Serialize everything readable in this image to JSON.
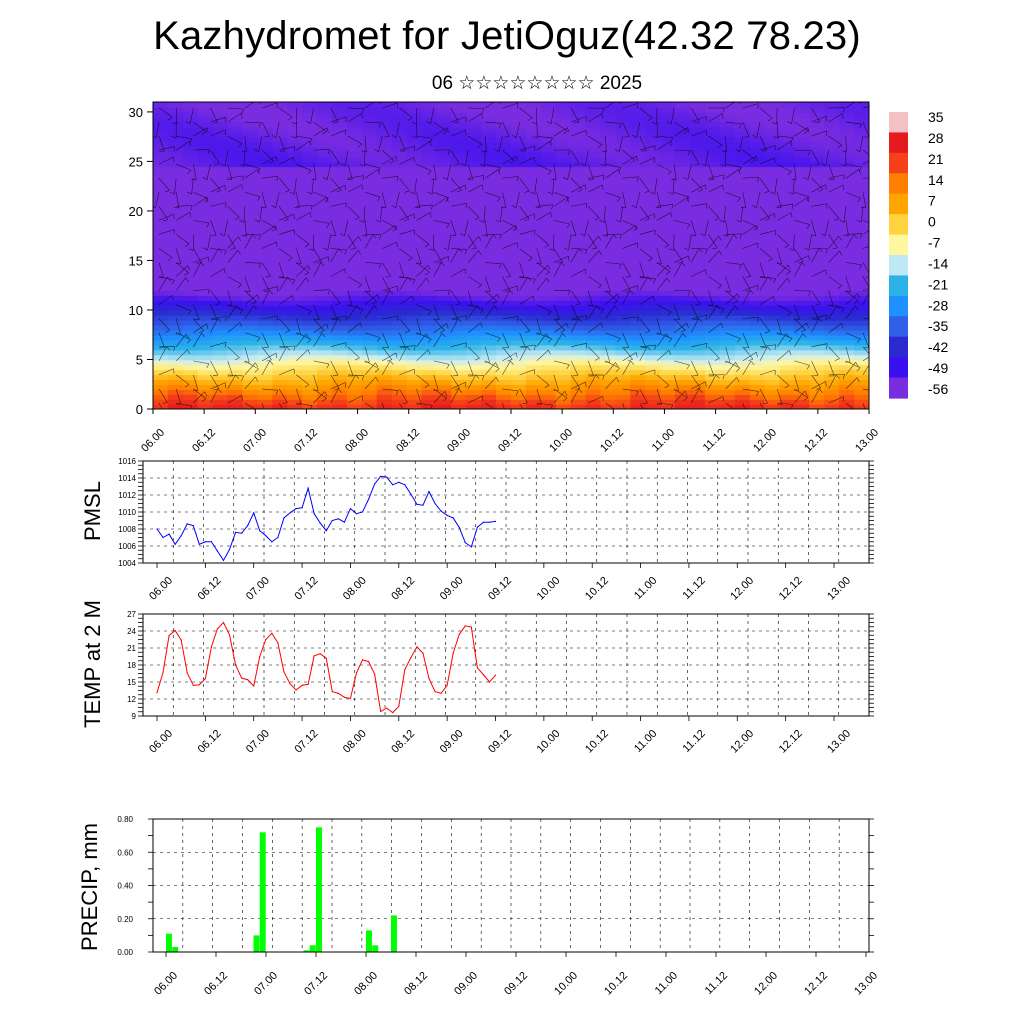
{
  "header": {
    "title": "Kazhydromet for JetiOguz(42.32 78.23)",
    "subtitle": "06 ☆☆☆☆☆☆☆☆ 2025"
  },
  "chart_data": [
    {
      "type": "heatmap",
      "id": "cross-section",
      "title": "",
      "ylabel": "",
      "ylim": [
        0,
        31
      ],
      "yticks": [
        0,
        5,
        10,
        15,
        20,
        25,
        30
      ],
      "xticks": [
        "06.00",
        "06.12",
        "07.00",
        "07.12",
        "08.00",
        "08.12",
        "09.00",
        "09.12",
        "10.00",
        "10.12",
        "11.00",
        "11.12",
        "12.00",
        "12.12",
        "13.00"
      ],
      "colorbar": {
        "labels": [
          "35",
          "28",
          "21",
          "14",
          "7",
          "0",
          "-7",
          "-14",
          "-21",
          "-28",
          "-35",
          "-42",
          "-49",
          "-56"
        ],
        "colors": [
          "#f4c2c4",
          "#e41a1c",
          "#f5401a",
          "#ff7f00",
          "#ffa500",
          "#ffd23f",
          "#fff7a0",
          "#bfe8f5",
          "#2bb3e8",
          "#1e90ff",
          "#3060e8",
          "#2a2ad0",
          "#3b10f0",
          "#7a2ce0"
        ]
      },
      "lapse_c_per_km": 7.4,
      "near_surface_offset": 27,
      "grid": true
    },
    {
      "type": "line",
      "id": "pmsl",
      "ylabel": "PMSL",
      "ylim": [
        1004,
        1016
      ],
      "yticks": [
        1004,
        1006,
        1008,
        1010,
        1012,
        1014,
        1016
      ],
      "xticks": [
        "06.00",
        "06.12",
        "07.00",
        "07.12",
        "08.00",
        "08.12",
        "09.00",
        "09.12",
        "10.00",
        "10.12",
        "11.00",
        "11.12",
        "12.00",
        "12.12",
        "13.00"
      ],
      "series": [
        {
          "color": "#0000ff",
          "x": [
            0.0,
            0.125,
            0.25,
            0.375,
            0.5,
            0.625,
            0.75,
            0.875,
            1.0,
            1.125,
            1.25,
            1.375,
            1.5,
            1.625,
            1.75,
            1.875,
            2.0,
            2.125,
            2.25,
            2.375,
            2.5,
            2.625,
            2.75,
            2.875,
            3.0,
            3.125,
            3.25,
            3.375,
            3.5,
            3.625,
            3.75,
            3.875,
            4.0,
            4.125,
            4.25,
            4.375,
            4.5,
            4.625,
            4.75,
            4.875,
            5.0,
            5.125,
            5.25,
            5.375,
            5.5,
            5.625,
            5.75,
            5.875,
            6.0,
            6.125,
            6.25,
            6.375,
            6.5,
            6.625,
            6.75,
            6.875,
            7.0
          ],
          "values": [
            1008.0,
            1007.0,
            1007.4,
            1006.2,
            1007.2,
            1008.6,
            1008.4,
            1006.2,
            1006.5,
            1006.5,
            1005.4,
            1004.3,
            1005.6,
            1007.6,
            1007.5,
            1008.4,
            1009.9,
            1007.8,
            1007.2,
            1006.5,
            1007.0,
            1009.3,
            1009.9,
            1010.4,
            1010.5,
            1012.8,
            1009.8,
            1008.7,
            1007.8,
            1009.0,
            1009.2,
            1008.8,
            1010.4,
            1009.8,
            1010.0,
            1011.5,
            1013.3,
            1014.2,
            1014.1,
            1013.2,
            1013.5,
            1013.2,
            1012.1,
            1010.9,
            1010.8,
            1012.4,
            1011.0,
            1010.1,
            1009.6,
            1009.3,
            1008.2,
            1006.4,
            1005.9,
            1008.2,
            1008.8,
            1008.8,
            1008.9
          ]
        }
      ],
      "grid": true
    },
    {
      "type": "line",
      "id": "temp",
      "ylabel": "TEMP at 2 M",
      "ylim": [
        9,
        27
      ],
      "yticks": [
        9,
        12,
        15,
        18,
        21,
        24,
        27
      ],
      "xticks": [
        "06.00",
        "06.12",
        "07.00",
        "07.12",
        "08.00",
        "08.12",
        "09.00",
        "09.12",
        "10.00",
        "10.12",
        "11.00",
        "11.12",
        "12.00",
        "12.12",
        "13.00"
      ],
      "series": [
        {
          "color": "#ff0000",
          "x": [
            0.0,
            0.125,
            0.25,
            0.375,
            0.5,
            0.625,
            0.75,
            0.875,
            1.0,
            1.125,
            1.25,
            1.375,
            1.5,
            1.625,
            1.75,
            1.875,
            2.0,
            2.125,
            2.25,
            2.375,
            2.5,
            2.625,
            2.75,
            2.875,
            3.0,
            3.125,
            3.25,
            3.375,
            3.5,
            3.625,
            3.75,
            3.875,
            4.0,
            4.125,
            4.25,
            4.375,
            4.5,
            4.625,
            4.75,
            4.875,
            5.0,
            5.125,
            5.25,
            5.375,
            5.5,
            5.625,
            5.75,
            5.875,
            6.0,
            6.125,
            6.25,
            6.375,
            6.5,
            6.625,
            6.75,
            6.875,
            7.0
          ],
          "values": [
            13.1,
            16.7,
            23.2,
            24.1,
            22.4,
            16.6,
            14.4,
            14.5,
            15.6,
            21.2,
            24.4,
            25.5,
            23.3,
            18.0,
            15.7,
            15.4,
            14.3,
            19.5,
            22.5,
            23.6,
            21.9,
            16.8,
            14.7,
            13.6,
            14.4,
            14.6,
            19.6,
            20.0,
            19.2,
            13.3,
            13.0,
            12.3,
            12.1,
            16.6,
            18.9,
            18.6,
            16.4,
            9.8,
            10.4,
            9.6,
            10.7,
            17.2,
            19.3,
            21.2,
            20.1,
            15.6,
            13.3,
            13.0,
            14.4,
            20.1,
            23.4,
            24.9,
            24.7,
            17.5,
            16.3,
            15.0,
            16.2
          ]
        }
      ],
      "grid": true
    },
    {
      "type": "bar",
      "id": "precip",
      "ylabel": "PRECIP, mm",
      "ylim": [
        0,
        0.8
      ],
      "yticks": [
        "0.00",
        "0.20",
        "0.40",
        "0.60",
        "0.80"
      ],
      "xticks": [
        "06.00",
        "06.12",
        "07.00",
        "07.12",
        "08.00",
        "08.12",
        "09.00",
        "09.12",
        "10.00",
        "10.12",
        "11.00",
        "11.12",
        "12.00",
        "12.12",
        "13.00"
      ],
      "series": [
        {
          "color": "#00ff00",
          "x": [
            0.0,
            0.125,
            1.75,
            1.875,
            2.75,
            2.875,
            3.0,
            4.0,
            4.125,
            4.5
          ],
          "values": [
            0.11,
            0.03,
            0.1,
            0.72,
            0.01,
            0.04,
            0.75,
            0.13,
            0.04,
            0.22
          ]
        }
      ],
      "grid": true
    }
  ]
}
